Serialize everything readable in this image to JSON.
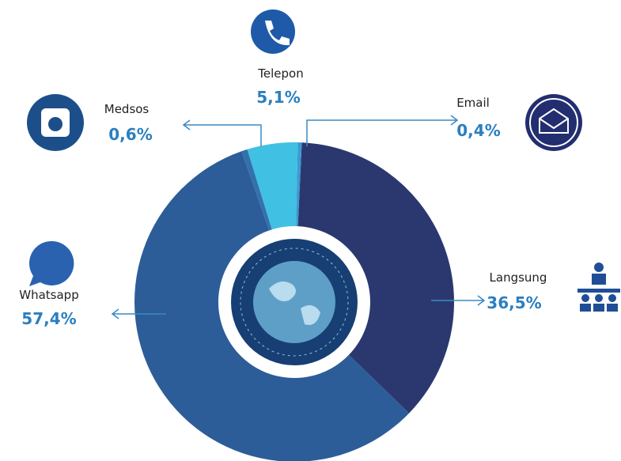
{
  "chart_data": {
    "type": "pie",
    "donut": true,
    "categories": [
      "Langsung",
      "Whatsapp",
      "Medsos",
      "Telepon",
      "Email"
    ],
    "values": [
      36.5,
      57.4,
      0.6,
      5.1,
      0.4
    ],
    "value_labels": [
      "36,5%",
      "57,4%",
      "0,6%",
      "5,1%",
      "0,4%"
    ],
    "colors": [
      "#2b386f",
      "#2c5d98",
      "#3371ae",
      "#40c0e2",
      "#3b9bd2"
    ]
  }
}
